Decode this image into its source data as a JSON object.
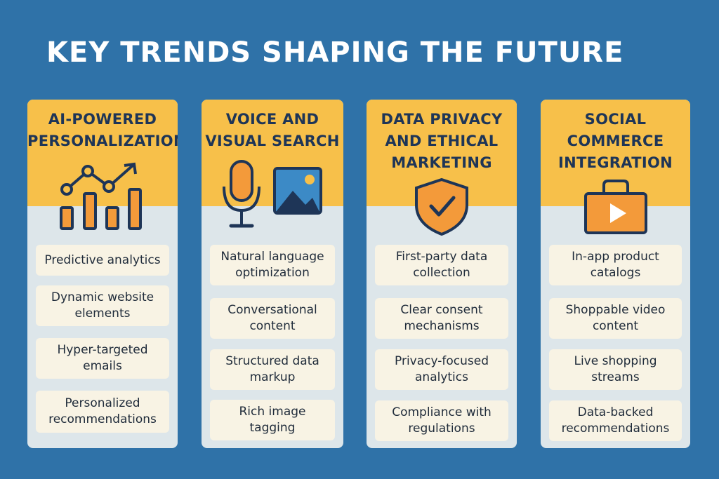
{
  "title": "KEY TRENDS SHAPING THE FUTURE",
  "colors": {
    "background": "#2f72a8",
    "header": "#f7c04a",
    "card": "#dde6ea",
    "item": "#f8f3e4",
    "heading_text": "#1e3557",
    "icon_orange": "#f39a3a",
    "icon_navy": "#1e3557"
  },
  "cards": [
    {
      "title_lines": [
        "AI-POWERED",
        "PERSONALIZATION"
      ],
      "icon": "trending-chart-icon",
      "items": [
        "Predictive analytics",
        "Dynamic website\nelements",
        "Hyper-targeted\nemails",
        "Personalized\nrecommendations"
      ]
    },
    {
      "title_lines": [
        "VOICE AND",
        "VISUAL SEARCH"
      ],
      "icon": "microphone-and-image-icon",
      "items": [
        "Natural language\noptimization",
        "Conversational\ncontent",
        "Structured data\nmarkup",
        "Rich image\ntagging"
      ]
    },
    {
      "title_lines": [
        "DATA PRIVACY",
        "AND ETHICAL",
        "MARKETING"
      ],
      "icon": "shield-check-icon",
      "items": [
        "First-party data\ncollection",
        "Clear consent\nmechanisms",
        "Privacy-focused\nanalytics",
        "Compliance with\nregulations"
      ]
    },
    {
      "title_lines": [
        "SOCIAL",
        "COMMERCE",
        "INTEGRATION"
      ],
      "icon": "shopping-bag-video-icon",
      "items": [
        "In-app product\ncatalogs",
        "Shoppable video\ncontent",
        "Live shopping\nstreams",
        "Data-backed\nrecommendations"
      ]
    }
  ]
}
